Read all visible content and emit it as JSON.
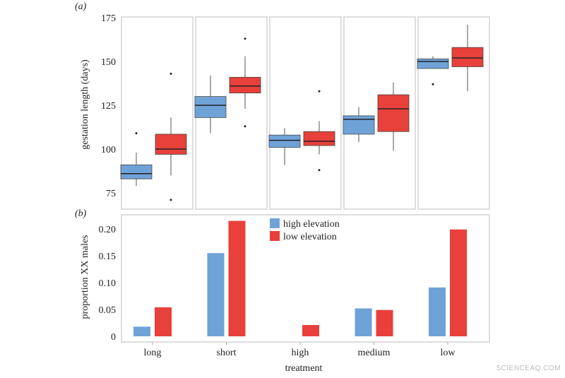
{
  "chart_data": [
    {
      "type": "box",
      "panel_label": "(a)",
      "ylabel": "gestation length (days)",
      "ylim": [
        68,
        178
      ],
      "yticks": [
        75,
        100,
        125,
        150,
        175
      ],
      "facets": [
        "long",
        "short",
        "high",
        "medium",
        "low"
      ],
      "series": [
        {
          "name": "high elevation",
          "color": "#6fa3d8",
          "boxes": [
            {
              "whislo": 79,
              "q1": 83,
              "med": 86,
              "q3": 91,
              "whishi": 98,
              "fliers": [
                109
              ]
            },
            {
              "whislo": 109,
              "q1": 118,
              "med": 125,
              "q3": 130,
              "whishi": 142,
              "fliers": []
            },
            {
              "whislo": 91,
              "q1": 101,
              "med": 105,
              "q3": 108,
              "whishi": 112,
              "fliers": []
            },
            {
              "whislo": 104,
              "q1": 108.5,
              "med": 117,
              "q3": 119,
              "whishi": 124,
              "fliers": []
            },
            {
              "whislo": 146,
              "q1": 146,
              "med": 150,
              "q3": 151.5,
              "whishi": 153,
              "fliers": [
                137
              ]
            }
          ]
        },
        {
          "name": "low elevation",
          "color": "#e8403a",
          "boxes": [
            {
              "whislo": 85,
              "q1": 97,
              "med": 100,
              "q3": 108.5,
              "whishi": 118,
              "fliers": [
                143,
                71
              ]
            },
            {
              "whislo": 123,
              "q1": 132,
              "med": 136,
              "q3": 141,
              "whishi": 153,
              "fliers": [
                163,
                113
              ]
            },
            {
              "whislo": 97,
              "q1": 102,
              "med": 104.5,
              "q3": 110,
              "whishi": 116,
              "fliers": [
                133,
                88
              ]
            },
            {
              "whislo": 99,
              "q1": 110,
              "med": 123,
              "q3": 131,
              "whishi": 138,
              "fliers": []
            },
            {
              "whislo": 133,
              "q1": 147,
              "med": 152,
              "q3": 158,
              "whishi": 171,
              "fliers": []
            }
          ]
        }
      ]
    },
    {
      "type": "bar",
      "panel_label": "(b)",
      "xlabel": "treatment",
      "ylabel": "proportion XX males",
      "ylim": [
        -0.01,
        0.225
      ],
      "yticks": [
        0,
        0.05,
        0.1,
        0.15,
        0.2
      ],
      "ytick_labels": [
        "0",
        "0.05",
        "0.10",
        "0.15",
        "0.20"
      ],
      "categories": [
        "long",
        "short",
        "high",
        "medium",
        "low"
      ],
      "series": [
        {
          "name": "high elevation",
          "color": "#6fa3d8",
          "values": [
            0.018,
            0.155,
            0,
            0.052,
            0.091
          ]
        },
        {
          "name": "low elevation",
          "color": "#e8403a",
          "values": [
            0.054,
            0.215,
            0.021,
            0.049,
            0.199
          ]
        }
      ],
      "legend": "top-center"
    }
  ],
  "watermark": "SCIENCEAQ.COM"
}
